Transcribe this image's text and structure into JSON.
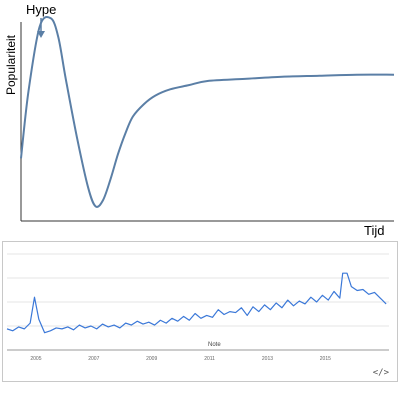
{
  "chart_data": [
    {
      "type": "line",
      "annotation": "Hype",
      "ylabel": "Populariteit",
      "xlabel": "Tijd",
      "x": [
        0,
        0.02,
        0.05,
        0.08,
        0.1,
        0.12,
        0.15,
        0.18,
        0.2,
        0.22,
        0.24,
        0.26,
        0.28,
        0.3,
        0.33,
        0.36,
        0.4,
        0.45,
        0.5,
        0.6,
        0.7,
        0.8,
        0.9,
        1.0
      ],
      "y": [
        0.3,
        0.62,
        0.93,
        0.97,
        0.88,
        0.68,
        0.4,
        0.16,
        0.07,
        0.1,
        0.2,
        0.32,
        0.42,
        0.5,
        0.56,
        0.6,
        0.63,
        0.65,
        0.67,
        0.68,
        0.69,
        0.695,
        0.7,
        0.7
      ],
      "ylim": [
        0,
        1
      ],
      "color": "#5b7fa6"
    },
    {
      "type": "line",
      "x_tick_labels": [
        "2005",
        "2007",
        "2009",
        "2011",
        "2013",
        "2015"
      ],
      "xlim": [
        2004,
        2017.2
      ],
      "ylim": [
        0,
        100
      ],
      "x": [
        2004.0,
        2004.2,
        2004.4,
        2004.6,
        2004.8,
        2004.95,
        2005.1,
        2005.3,
        2005.5,
        2005.7,
        2005.9,
        2006.1,
        2006.3,
        2006.5,
        2006.7,
        2006.9,
        2007.1,
        2007.3,
        2007.5,
        2007.7,
        2007.9,
        2008.1,
        2008.3,
        2008.5,
        2008.7,
        2008.9,
        2009.1,
        2009.3,
        2009.5,
        2009.7,
        2009.9,
        2010.1,
        2010.3,
        2010.5,
        2010.7,
        2010.9,
        2011.1,
        2011.3,
        2011.5,
        2011.7,
        2011.9,
        2012.1,
        2012.3,
        2012.5,
        2012.7,
        2012.9,
        2013.1,
        2013.3,
        2013.5,
        2013.7,
        2013.9,
        2014.1,
        2014.3,
        2014.5,
        2014.7,
        2014.9,
        2015.1,
        2015.3,
        2015.5,
        2015.6,
        2015.75,
        2015.9,
        2016.1,
        2016.3,
        2016.5,
        2016.7,
        2016.9,
        2017.1
      ],
      "y": [
        22,
        20,
        24,
        22,
        28,
        55,
        32,
        18,
        20,
        23,
        22,
        24,
        21,
        26,
        23,
        25,
        22,
        27,
        24,
        26,
        23,
        28,
        26,
        30,
        27,
        29,
        26,
        31,
        28,
        33,
        30,
        35,
        31,
        38,
        33,
        36,
        34,
        42,
        37,
        40,
        39,
        44,
        36,
        45,
        40,
        47,
        42,
        49,
        44,
        52,
        46,
        51,
        48,
        55,
        50,
        57,
        52,
        61,
        54,
        80,
        80,
        66,
        62,
        63,
        58,
        60,
        54,
        48
      ],
      "color": "#3b78d8",
      "note": "Note"
    }
  ],
  "embed_icon": "</>",
  "icons": {
    "embed": "embed-code-icon"
  }
}
